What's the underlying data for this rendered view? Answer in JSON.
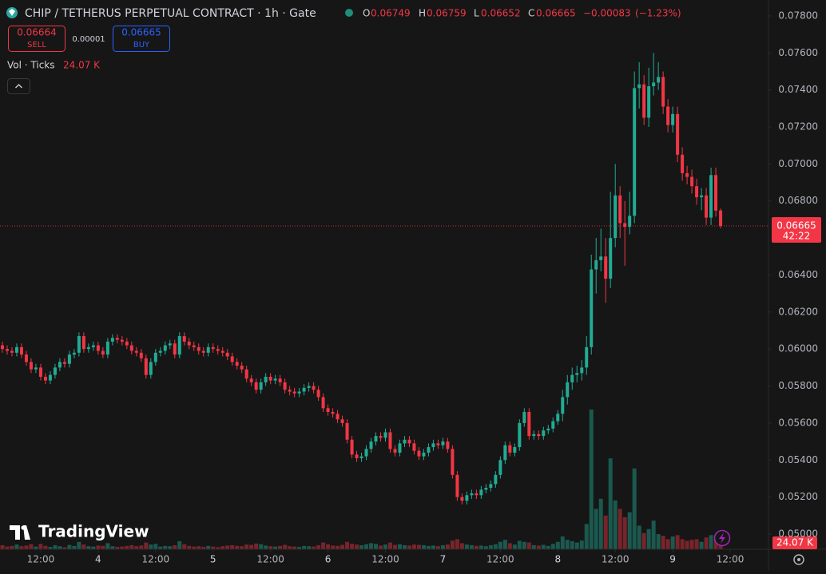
{
  "chart_data": {
    "type": "candlestick",
    "title": "CHIP / TETHERUS PERPETUAL CONTRACT · 1h · Gate",
    "legend_keys": [
      "O",
      "H",
      "L",
      "C"
    ],
    "change": {
      "value": -0.00083,
      "label": "−0.00083"
    },
    "change_pct": {
      "value": -1.23,
      "label": "(−1.23%)"
    },
    "sell_price": 0.06664,
    "sell_label": "SELL",
    "spread": 1e-05,
    "buy_price": 0.06665,
    "buy_label": "BUY",
    "volume_name": "Vol · Ticks",
    "volume_last_label": "24.07 K",
    "countdown": "42:22",
    "brand": "TradingView",
    "up_color": "#22ab94",
    "down_color": "#f23645",
    "grid": false,
    "xlim": [
      -0.5,
      160
    ],
    "ylim": [
      0.04918,
      0.07886
    ],
    "yticks": [
      {
        "value": 0.078,
        "label": "0.07800"
      },
      {
        "value": 0.076,
        "label": "0.07600"
      },
      {
        "value": 0.074,
        "label": "0.07400"
      },
      {
        "value": 0.072,
        "label": "0.07200"
      },
      {
        "value": 0.07,
        "label": "0.07000"
      },
      {
        "value": 0.068,
        "label": "0.06800"
      },
      {
        "value": 0.064,
        "label": "0.06400"
      },
      {
        "value": 0.062,
        "label": "0.06200"
      },
      {
        "value": 0.06,
        "label": "0.06000"
      },
      {
        "value": 0.058,
        "label": "0.05800"
      },
      {
        "value": 0.056,
        "label": "0.05600"
      },
      {
        "value": 0.054,
        "label": "0.05400"
      },
      {
        "value": 0.052,
        "label": "0.05200"
      },
      {
        "value": 0.05,
        "label": "0.05000"
      }
    ],
    "xticks": [
      {
        "value": 8,
        "label": "12:00"
      },
      {
        "value": 20,
        "label": "4"
      },
      {
        "value": 32,
        "label": "12:00"
      },
      {
        "value": 44,
        "label": "5"
      },
      {
        "value": 56,
        "label": "12:00"
      },
      {
        "value": 68,
        "label": "6"
      },
      {
        "value": 80,
        "label": "12:00"
      },
      {
        "value": 92,
        "label": "7"
      },
      {
        "value": 104,
        "label": "12:00"
      },
      {
        "value": 116,
        "label": "8"
      },
      {
        "value": 128,
        "label": "12:00"
      },
      {
        "value": 140,
        "label": "9"
      },
      {
        "value": 152,
        "label": "12:00"
      }
    ],
    "open": [
      0.0602,
      0.06,
      0.0599,
      0.0598,
      0.0601,
      0.0597,
      0.0593,
      0.0589,
      0.059,
      0.0585,
      0.0583,
      0.0586,
      0.059,
      0.0593,
      0.0592,
      0.0597,
      0.0598,
      0.0607,
      0.06,
      0.0601,
      0.0602,
      0.0599,
      0.0597,
      0.0604,
      0.0606,
      0.0605,
      0.0604,
      0.0602,
      0.0599,
      0.0598,
      0.0595,
      0.0586,
      0.0593,
      0.0598,
      0.0599,
      0.0602,
      0.0603,
      0.0597,
      0.0607,
      0.0604,
      0.0602,
      0.0601,
      0.0599,
      0.0598,
      0.0601,
      0.06,
      0.0599,
      0.0598,
      0.0596,
      0.0593,
      0.0591,
      0.0589,
      0.0584,
      0.0582,
      0.0578,
      0.0582,
      0.0585,
      0.0583,
      0.0584,
      0.0582,
      0.0578,
      0.0577,
      0.0576,
      0.0577,
      0.0579,
      0.058,
      0.0578,
      0.0574,
      0.0568,
      0.0566,
      0.0565,
      0.0562,
      0.056,
      0.0551,
      0.0543,
      0.0541,
      0.0542,
      0.0546,
      0.055,
      0.0553,
      0.0552,
      0.0555,
      0.0546,
      0.0544,
      0.0549,
      0.0551,
      0.0549,
      0.0545,
      0.0542,
      0.0544,
      0.0547,
      0.0549,
      0.0548,
      0.055,
      0.0546,
      0.0532,
      0.052,
      0.0518,
      0.0521,
      0.0522,
      0.0521,
      0.0524,
      0.0525,
      0.0527,
      0.0532,
      0.054,
      0.0548,
      0.0544,
      0.0547,
      0.056,
      0.0566,
      0.0553,
      0.0554,
      0.0553,
      0.0556,
      0.0557,
      0.0561,
      0.0565,
      0.0574,
      0.0582,
      0.0586,
      0.0587,
      0.059,
      0.0601,
      0.0643,
      0.0648,
      0.065,
      0.0638,
      0.066,
      0.0683,
      0.0668,
      0.0666,
      0.0672,
      0.0741,
      0.0743,
      0.0725,
      0.0742,
      0.0744,
      0.0747,
      0.0731,
      0.0721,
      0.0727,
      0.0705,
      0.0695,
      0.0693,
      0.0688,
      0.0682,
      0.0683,
      0.0671,
      0.0694,
      0.06749
    ],
    "high": [
      0.0604,
      0.0602,
      0.0601,
      0.0603,
      0.0603,
      0.0599,
      0.0595,
      0.0592,
      0.0592,
      0.0587,
      0.0588,
      0.0592,
      0.0595,
      0.0595,
      0.0599,
      0.06,
      0.0609,
      0.0609,
      0.0603,
      0.0604,
      0.0604,
      0.0601,
      0.0606,
      0.0608,
      0.0608,
      0.0607,
      0.0606,
      0.0604,
      0.0601,
      0.06,
      0.0597,
      0.0595,
      0.06,
      0.0601,
      0.0604,
      0.0605,
      0.0605,
      0.0609,
      0.0609,
      0.0606,
      0.0604,
      0.0603,
      0.0601,
      0.0603,
      0.0603,
      0.0602,
      0.0601,
      0.06,
      0.0598,
      0.0595,
      0.0593,
      0.0591,
      0.0586,
      0.0584,
      0.0584,
      0.0587,
      0.0587,
      0.0586,
      0.0586,
      0.0584,
      0.058,
      0.0579,
      0.0579,
      0.0581,
      0.0582,
      0.0582,
      0.058,
      0.0576,
      0.057,
      0.0568,
      0.0567,
      0.0564,
      0.0562,
      0.0553,
      0.0545,
      0.0544,
      0.0548,
      0.0552,
      0.0555,
      0.0555,
      0.0557,
      0.0557,
      0.0548,
      0.0551,
      0.0553,
      0.0553,
      0.0551,
      0.0547,
      0.0546,
      0.0549,
      0.0551,
      0.0551,
      0.0552,
      0.0552,
      0.0548,
      0.0534,
      0.0522,
      0.0523,
      0.0524,
      0.0524,
      0.0526,
      0.0527,
      0.0529,
      0.0534,
      0.0542,
      0.055,
      0.055,
      0.0549,
      0.0562,
      0.0568,
      0.0568,
      0.0556,
      0.0556,
      0.0558,
      0.0559,
      0.0563,
      0.0567,
      0.0578,
      0.0586,
      0.059,
      0.0591,
      0.0594,
      0.0607,
      0.0651,
      0.066,
      0.0665,
      0.066,
      0.0685,
      0.07,
      0.0688,
      0.068,
      0.0685,
      0.075,
      0.0755,
      0.0748,
      0.0752,
      0.076,
      0.0755,
      0.075,
      0.0735,
      0.0731,
      0.0731,
      0.0709,
      0.0699,
      0.0697,
      0.0692,
      0.0687,
      0.0687,
      0.0698,
      0.0698,
      0.06759
    ],
    "low": [
      0.0598,
      0.0597,
      0.0596,
      0.0596,
      0.0595,
      0.0591,
      0.0587,
      0.0587,
      0.0583,
      0.0581,
      0.0581,
      0.0584,
      0.0588,
      0.059,
      0.059,
      0.0595,
      0.0596,
      0.0598,
      0.0598,
      0.0599,
      0.0597,
      0.0595,
      0.0595,
      0.0602,
      0.0603,
      0.0602,
      0.06,
      0.0597,
      0.0596,
      0.0593,
      0.0584,
      0.0584,
      0.0591,
      0.0596,
      0.0597,
      0.06,
      0.0595,
      0.0595,
      0.0602,
      0.06,
      0.0599,
      0.0597,
      0.0596,
      0.0596,
      0.0598,
      0.0597,
      0.0596,
      0.0594,
      0.0591,
      0.0589,
      0.0587,
      0.0582,
      0.058,
      0.0576,
      0.0576,
      0.058,
      0.0581,
      0.0581,
      0.058,
      0.0576,
      0.0575,
      0.0574,
      0.0574,
      0.0575,
      0.0577,
      0.0576,
      0.0572,
      0.0566,
      0.0564,
      0.0563,
      0.056,
      0.0558,
      0.0549,
      0.0541,
      0.0539,
      0.0539,
      0.054,
      0.0544,
      0.0548,
      0.055,
      0.055,
      0.0544,
      0.0542,
      0.0542,
      0.0547,
      0.0547,
      0.0543,
      0.054,
      0.054,
      0.0542,
      0.0545,
      0.0546,
      0.0546,
      0.0544,
      0.053,
      0.0518,
      0.0516,
      0.0516,
      0.0519,
      0.0519,
      0.0519,
      0.0522,
      0.0523,
      0.0525,
      0.053,
      0.0538,
      0.0542,
      0.0542,
      0.0545,
      0.0558,
      0.0551,
      0.0551,
      0.0551,
      0.0551,
      0.0554,
      0.0555,
      0.0559,
      0.0561,
      0.057,
      0.0578,
      0.0582,
      0.0583,
      0.0586,
      0.0597,
      0.063,
      0.0642,
      0.0625,
      0.0633,
      0.0655,
      0.066,
      0.0645,
      0.0662,
      0.0668,
      0.073,
      0.0721,
      0.072,
      0.0737,
      0.074,
      0.0727,
      0.0717,
      0.0717,
      0.0701,
      0.0691,
      0.0689,
      0.0684,
      0.0678,
      0.0675,
      0.0667,
      0.0667,
      0.06715,
      0.06652
    ],
    "close": [
      0.06,
      0.0599,
      0.0598,
      0.0601,
      0.0597,
      0.0593,
      0.0589,
      0.059,
      0.0585,
      0.0583,
      0.0586,
      0.059,
      0.0593,
      0.0592,
      0.0597,
      0.0598,
      0.0607,
      0.06,
      0.0601,
      0.0602,
      0.0599,
      0.0597,
      0.0604,
      0.0606,
      0.0605,
      0.0604,
      0.0602,
      0.0599,
      0.0598,
      0.0595,
      0.0586,
      0.0593,
      0.0598,
      0.0599,
      0.0602,
      0.0603,
      0.0597,
      0.0607,
      0.0604,
      0.0602,
      0.0601,
      0.0599,
      0.0598,
      0.0601,
      0.06,
      0.0599,
      0.0598,
      0.0596,
      0.0593,
      0.0591,
      0.0589,
      0.0584,
      0.0582,
      0.0578,
      0.0582,
      0.0585,
      0.0583,
      0.0584,
      0.0582,
      0.0578,
      0.0577,
      0.0576,
      0.0577,
      0.0579,
      0.058,
      0.0578,
      0.0574,
      0.0568,
      0.0566,
      0.0565,
      0.0562,
      0.056,
      0.0551,
      0.0543,
      0.0541,
      0.0542,
      0.0546,
      0.055,
      0.0553,
      0.0552,
      0.0555,
      0.0546,
      0.0544,
      0.0549,
      0.0551,
      0.0549,
      0.0545,
      0.0542,
      0.0544,
      0.0547,
      0.0549,
      0.0548,
      0.055,
      0.0546,
      0.0532,
      0.052,
      0.0518,
      0.0521,
      0.0522,
      0.0521,
      0.0524,
      0.0525,
      0.0527,
      0.0532,
      0.054,
      0.0548,
      0.0544,
      0.0547,
      0.056,
      0.0566,
      0.0553,
      0.0554,
      0.0553,
      0.0556,
      0.0557,
      0.0561,
      0.0565,
      0.0574,
      0.0582,
      0.0586,
      0.0587,
      0.059,
      0.0601,
      0.0643,
      0.0648,
      0.065,
      0.0638,
      0.066,
      0.0683,
      0.0668,
      0.0666,
      0.0672,
      0.0741,
      0.0743,
      0.0725,
      0.0742,
      0.0744,
      0.0747,
      0.0731,
      0.0721,
      0.0727,
      0.0705,
      0.0695,
      0.0693,
      0.0688,
      0.0682,
      0.0683,
      0.0671,
      0.0694,
      0.06748,
      0.06665
    ],
    "volume": [
      12000,
      8000,
      10000,
      14000,
      9000,
      11000,
      15000,
      8000,
      16000,
      10000,
      7000,
      12000,
      9000,
      6000,
      13000,
      10000,
      22000,
      14000,
      9000,
      8000,
      11000,
      10000,
      18000,
      9000,
      7000,
      8000,
      10000,
      12000,
      9000,
      11000,
      20000,
      14000,
      16000,
      8000,
      10000,
      9000,
      12000,
      24000,
      15000,
      10000,
      8000,
      9000,
      7000,
      10000,
      8000,
      6000,
      9000,
      11000,
      12000,
      10000,
      9000,
      14000,
      13000,
      17000,
      15000,
      11000,
      9000,
      8000,
      10000,
      13000,
      9000,
      8000,
      7000,
      10000,
      9000,
      8000,
      12000,
      20000,
      15000,
      11000,
      10000,
      13000,
      22000,
      16000,
      14000,
      12000,
      15000,
      18000,
      16000,
      11000,
      14000,
      20000,
      13000,
      15000,
      12000,
      11000,
      14000,
      13000,
      12000,
      10000,
      11000,
      9000,
      12000,
      14000,
      26000,
      30000,
      18000,
      14000,
      12000,
      10000,
      11000,
      9000,
      12000,
      15000,
      22000,
      28000,
      18000,
      14000,
      25000,
      22000,
      20000,
      12000,
      11000,
      13000,
      10000,
      16000,
      22000,
      38000,
      28000,
      24000,
      20000,
      26000,
      75000,
      415000,
      120000,
      150000,
      100000,
      270000,
      145000,
      120000,
      95000,
      110000,
      240000,
      70000,
      48000,
      60000,
      85000,
      45000,
      40000,
      30000,
      38000,
      42000,
      30000,
      25000,
      28000,
      30000,
      22000,
      35000,
      42000,
      30000,
      24070
    ]
  }
}
